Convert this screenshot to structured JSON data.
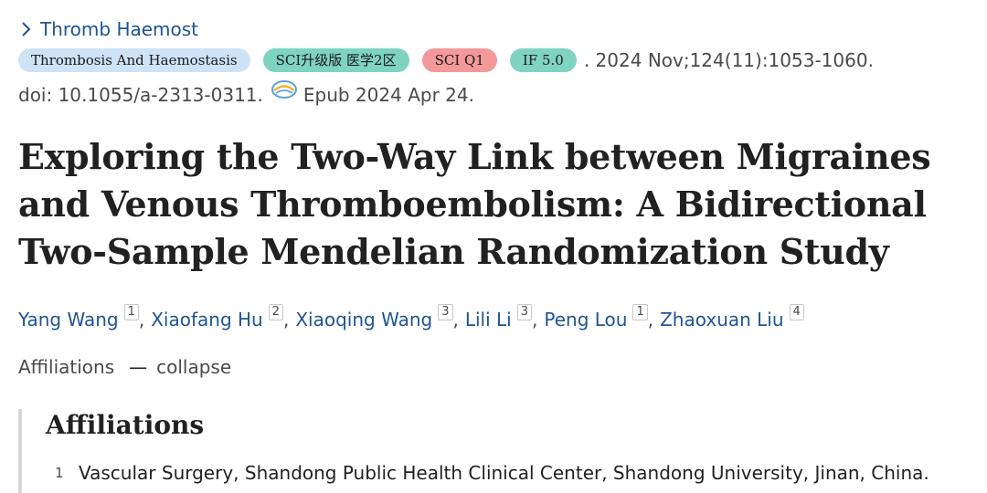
{
  "journal": {
    "link_label": "Thromb Haemost"
  },
  "tags": [
    {
      "label": "Thrombosis And Haemostasis",
      "color": "#cfe3f6"
    },
    {
      "label": "SCI升级版 医学2区",
      "color": "#7fd3c1"
    },
    {
      "label": "SCI Q1",
      "color": "#f39999"
    },
    {
      "label": "IF 5.0",
      "color": "#7fd3c1"
    }
  ],
  "citation": {
    "text": ". 2024 Nov;124(11):1053-1060.",
    "doi": "doi: 10.1055/a-2313-0311.",
    "epub": "Epub 2024 Apr 24."
  },
  "article": {
    "title": "Exploring the Two-Way Link between Migraines and Venous Thromboembolism: A Bidirectional Two-Sample Mendelian Randomization Study"
  },
  "authors": [
    {
      "name": "Yang Wang",
      "aff": "1"
    },
    {
      "name": "Xiaofang Hu",
      "aff": "2"
    },
    {
      "name": "Xiaoqing Wang",
      "aff": "3"
    },
    {
      "name": "Lili Li",
      "aff": "3"
    },
    {
      "name": "Peng Lou",
      "aff": "1"
    },
    {
      "name": "Zhaoxuan Liu",
      "aff": "4"
    }
  ],
  "affiliations": {
    "toggle_label": "Affiliations",
    "toggle_dash": "—",
    "collapse_label": "collapse",
    "heading": "Affiliations",
    "items": [
      {
        "num": "1",
        "text": "Vascular Surgery, Shandong Public Health Clinical Center, Shandong University, Jinan, China."
      }
    ]
  },
  "colors": {
    "link": "#205493",
    "text": "#212121",
    "muted": "#4a4a4a"
  }
}
